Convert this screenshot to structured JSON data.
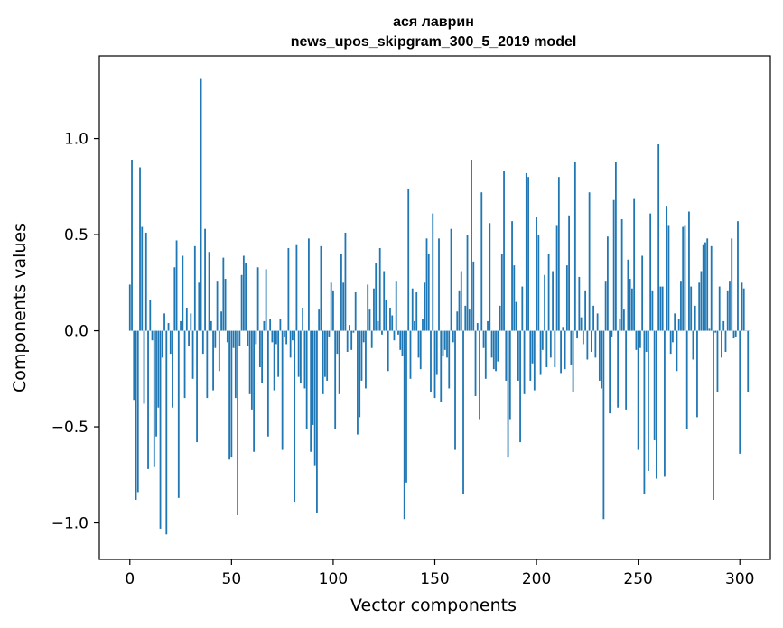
{
  "chart_data": {
    "type": "bar",
    "title_line1": "ася лаврин",
    "title_line2": "news_upos_skipgram_300_5_2019 model",
    "xlabel": "Vector components",
    "ylabel": "Components values",
    "xlim": [
      -15,
      315
    ],
    "ylim": [
      -1.19,
      1.43
    ],
    "x_ticks": [
      0,
      50,
      100,
      150,
      200,
      250,
      300
    ],
    "x_tick_labels": [
      "0",
      "50",
      "100",
      "150",
      "200",
      "250",
      "300"
    ],
    "y_ticks": [
      -1.0,
      -0.5,
      0.0,
      0.5,
      1.0
    ],
    "y_tick_labels": [
      "−1.0",
      "−0.5",
      "0.0",
      "0.5",
      "1.0"
    ],
    "bar_color": "#1f77b4",
    "values": [
      0.24,
      0.89,
      -0.36,
      -0.88,
      -0.84,
      0.85,
      0.54,
      -0.38,
      0.51,
      -0.72,
      0.16,
      -0.05,
      -0.71,
      -0.55,
      -0.4,
      -1.03,
      -0.14,
      0.09,
      -1.06,
      0.04,
      -0.12,
      -0.4,
      0.33,
      0.47,
      -0.87,
      0.05,
      0.39,
      -0.35,
      0.12,
      -0.08,
      0.09,
      -0.25,
      0.44,
      -0.58,
      0.25,
      1.31,
      -0.12,
      0.53,
      -0.35,
      0.41,
      0.05,
      -0.31,
      -0.09,
      0.26,
      -0.21,
      0.1,
      0.38,
      0.27,
      -0.06,
      -0.67,
      -0.66,
      -0.09,
      -0.35,
      -0.96,
      -0.08,
      0.29,
      0.39,
      0.35,
      -0.08,
      -0.33,
      -0.41,
      -0.63,
      -0.07,
      0.33,
      -0.19,
      -0.27,
      0.05,
      0.32,
      -0.55,
      0.06,
      -0.06,
      -0.31,
      -0.07,
      -0.24,
      0.06,
      -0.62,
      -0.03,
      -0.07,
      0.43,
      -0.14,
      -0.05,
      -0.89,
      0.45,
      -0.24,
      -0.27,
      0.12,
      -0.3,
      -0.51,
      0.48,
      -0.63,
      -0.49,
      -0.7,
      -0.95,
      0.11,
      0.44,
      -0.33,
      -0.24,
      -0.26,
      -0.03,
      0.25,
      0.21,
      -0.51,
      -0.12,
      -0.33,
      0.4,
      0.25,
      0.51,
      -0.11,
      0.03,
      -0.1,
      -0.01,
      0.2,
      -0.54,
      -0.45,
      -0.26,
      -0.06,
      -0.3,
      0.24,
      0.11,
      -0.09,
      0.22,
      0.35,
      0.05,
      0.43,
      -0.02,
      0.31,
      0.16,
      -0.21,
      0.12,
      0.08,
      -0.05,
      0.26,
      -0.02,
      -0.1,
      -0.13,
      -0.98,
      -0.79,
      0.74,
      -0.25,
      0.22,
      0.05,
      0.2,
      -0.14,
      -0.2,
      0.06,
      0.25,
      0.48,
      0.4,
      -0.32,
      0.61,
      -0.35,
      -0.23,
      0.48,
      -0.37,
      -0.13,
      -0.1,
      -0.14,
      -0.3,
      0.53,
      -0.06,
      -0.62,
      0.1,
      0.21,
      0.31,
      -0.85,
      0.13,
      0.5,
      0.11,
      0.89,
      0.36,
      -0.34,
      0.04,
      -0.46,
      0.72,
      -0.09,
      -0.25,
      0.05,
      0.56,
      -0.14,
      -0.2,
      -0.21,
      -0.16,
      0.13,
      0.4,
      0.83,
      -0.26,
      -0.66,
      -0.46,
      0.57,
      0.34,
      0.15,
      -0.26,
      -0.58,
      0.23,
      -0.33,
      0.82,
      0.8,
      -0.26,
      -0.17,
      -0.31,
      0.59,
      0.5,
      -0.23,
      -0.1,
      0.29,
      -0.19,
      0.4,
      -0.14,
      0.31,
      -0.19,
      0.55,
      0.8,
      -0.22,
      0.02,
      -0.2,
      0.34,
      0.6,
      -0.18,
      -0.32,
      0.88,
      -0.04,
      0.28,
      0.07,
      -0.07,
      0.21,
      -0.15,
      0.72,
      -0.11,
      0.13,
      -0.14,
      0.09,
      -0.26,
      -0.3,
      -0.98,
      0.26,
      0.49,
      -0.43,
      -0.03,
      0.68,
      0.88,
      -0.4,
      0.06,
      0.58,
      0.11,
      -0.41,
      0.37,
      0.27,
      0.22,
      0.69,
      -0.1,
      -0.62,
      -0.09,
      0.39,
      -0.85,
      -0.11,
      -0.73,
      0.61,
      0.21,
      -0.57,
      -0.77,
      0.97,
      0.23,
      0.23,
      -0.76,
      0.65,
      0.55,
      -0.12,
      -0.06,
      0.09,
      -0.21,
      0.06,
      0.26,
      0.54,
      0.55,
      -0.51,
      0.62,
      0.23,
      -0.15,
      0.13,
      -0.45,
      0.25,
      0.31,
      0.45,
      0.46,
      0.48,
      0.01,
      0.44,
      -0.88,
      -0.01,
      -0.32,
      0.23,
      -0.14,
      0.05,
      -0.11,
      0.21,
      0.26,
      0.48,
      -0.04,
      -0.03,
      0.57,
      -0.64,
      0.25,
      0.22,
      0.0,
      -0.32,
      0.0
    ]
  }
}
